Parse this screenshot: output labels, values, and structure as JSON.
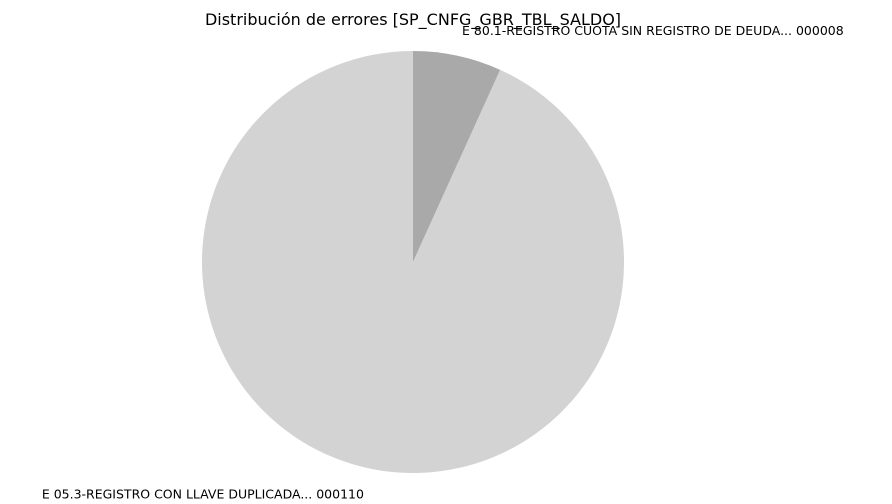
{
  "chart_data": {
    "type": "pie",
    "title": "Distribución de errores [SP_CNFG_GBR_TBL_SALDO]",
    "labels": [
      "E 80.1-REGISTRO CUOTA SIN REGISTRO DE DEUDA... 000008",
      "E 05.3-REGISTRO CON LLAVE DUPLICADA... 000110"
    ],
    "values": [
      8,
      110
    ],
    "colors": [
      "#a9a9a9",
      "#d3d3d3"
    ],
    "start_angle": "top",
    "direction": "clockwise",
    "legend": false
  }
}
